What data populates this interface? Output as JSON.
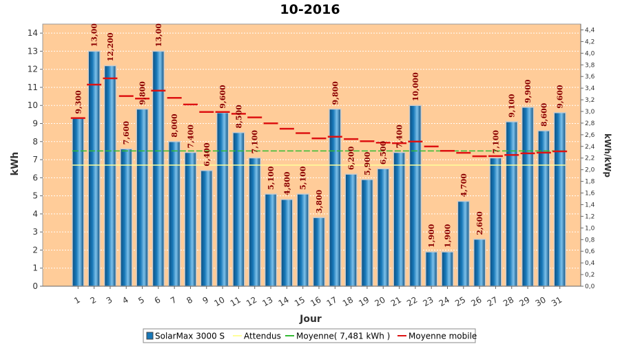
{
  "chart_data": {
    "type": "bar",
    "title": "10-2016",
    "xlabel": "Jour",
    "ylabel": "kWh",
    "ylabel_right": "kWh/kWp",
    "ylim": [
      0,
      14.5
    ],
    "ylim_right": [
      0,
      4.5
    ],
    "y_ticks": [
      0,
      1,
      2,
      3,
      4,
      5,
      6,
      7,
      8,
      9,
      10,
      11,
      12,
      13,
      14
    ],
    "y_right_ticks": [
      "0,0",
      "0,2",
      "0,4",
      "0,6",
      "0,8",
      "1,0",
      "1,2",
      "1,4",
      "1,6",
      "1,8",
      "2,0",
      "2,2",
      "2,4",
      "2,6",
      "2,8",
      "3,0",
      "3,2",
      "3,4",
      "3,6",
      "3,8",
      "4,0",
      "4,2",
      "4,4"
    ],
    "grid": true,
    "legend_position": "bottom",
    "categories": [
      "1",
      "2",
      "3",
      "4",
      "5",
      "6",
      "7",
      "8",
      "9",
      "10",
      "11",
      "12",
      "13",
      "14",
      "15",
      "16",
      "17",
      "18",
      "19",
      "20",
      "21",
      "22",
      "23",
      "24",
      "25",
      "26",
      "27",
      "28",
      "29",
      "30",
      "31"
    ],
    "series": [
      {
        "name": "SolarMax 3000 S",
        "kind": "bar",
        "color": "#1878b8",
        "values": [
          9.3,
          13.0,
          12.2,
          7.6,
          9.8,
          13.0,
          8.0,
          7.4,
          6.4,
          9.6,
          8.5,
          7.1,
          5.1,
          4.8,
          5.1,
          3.8,
          9.8,
          6.2,
          5.9,
          6.5,
          7.4,
          10.0,
          1.9,
          1.9,
          4.7,
          2.6,
          7.1,
          9.1,
          9.9,
          8.6,
          9.6
        ],
        "labels": [
          "9,300",
          "13,00",
          "12,200",
          "7,600",
          "9,800",
          "13,00",
          "8,000",
          "7,400",
          "6,400",
          "9,600",
          "8,500",
          "7,100",
          "5,100",
          "4,800",
          "5,100",
          "3,800",
          "9,800",
          "6,200",
          "5,900",
          "6,500",
          "7,400",
          "10,000",
          "1,900",
          "1,900",
          "4,700",
          "2,600",
          "7,100",
          "9,100",
          "9,900",
          "8,600",
          "9,600"
        ]
      },
      {
        "name": "Attendus",
        "kind": "line",
        "color": "#ffff99",
        "value": 6.7
      },
      {
        "name": "Moyenne( 7,481 kWh )",
        "kind": "line",
        "color": "#33bb33",
        "value": 7.481
      },
      {
        "name": "Moyenne mobile",
        "kind": "step",
        "color": "#dd1111",
        "values": [
          9.3,
          11.15,
          11.5,
          10.52,
          10.38,
          10.82,
          10.42,
          10.05,
          9.64,
          9.64,
          9.54,
          9.34,
          9.01,
          8.71,
          8.47,
          8.18,
          8.27,
          8.14,
          8.02,
          7.94,
          7.91,
          8.0,
          7.73,
          7.49,
          7.38,
          7.19,
          7.2,
          7.26,
          7.35,
          7.39,
          7.46
        ]
      }
    ]
  }
}
